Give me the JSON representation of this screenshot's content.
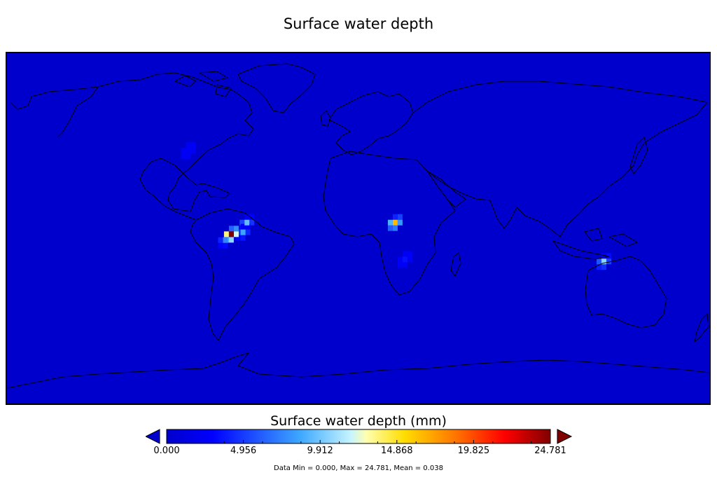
{
  "title": "Surface water depth",
  "colorbar": {
    "label": "Surface water depth (mm)",
    "ticks": [
      "0.000",
      "4.956",
      "9.912",
      "14.868",
      "19.825",
      "24.781"
    ],
    "under_color": "#0000cc",
    "over_color": "#800000"
  },
  "stats": "Data Min = 0.000, Max = 24.781, Mean = 0.038",
  "chart_data": {
    "type": "heatmap",
    "projection": "global lat-lon",
    "xlim": [
      -180,
      180
    ],
    "ylim": [
      -90,
      90
    ],
    "vmin": 0.0,
    "vmax": 24.781,
    "colormap": "jet",
    "background_value": 0.0,
    "hotspots": [
      {
        "region": "Amazon basin (western)",
        "lon": -65,
        "lat": -3,
        "value": 24.781
      },
      {
        "region": "Amazon basin",
        "lon": -68,
        "lat": -6,
        "value": 7.5
      },
      {
        "region": "Amazon basin (east)",
        "lon": -59,
        "lat": -2,
        "value": 8.5
      },
      {
        "region": "Orinoco / Guiana",
        "lon": -57,
        "lat": 3,
        "value": 9.5
      },
      {
        "region": "Congo basin",
        "lon": 19,
        "lat": 3,
        "value": 16.5
      },
      {
        "region": "Southern Africa",
        "lon": 24,
        "lat": -16,
        "value": 3.5
      },
      {
        "region": "North-west Australia",
        "lon": 126,
        "lat": -17,
        "value": 10.5
      },
      {
        "region": "Eastern North America",
        "lon": -87,
        "lat": 40,
        "value": 2.5
      }
    ]
  }
}
